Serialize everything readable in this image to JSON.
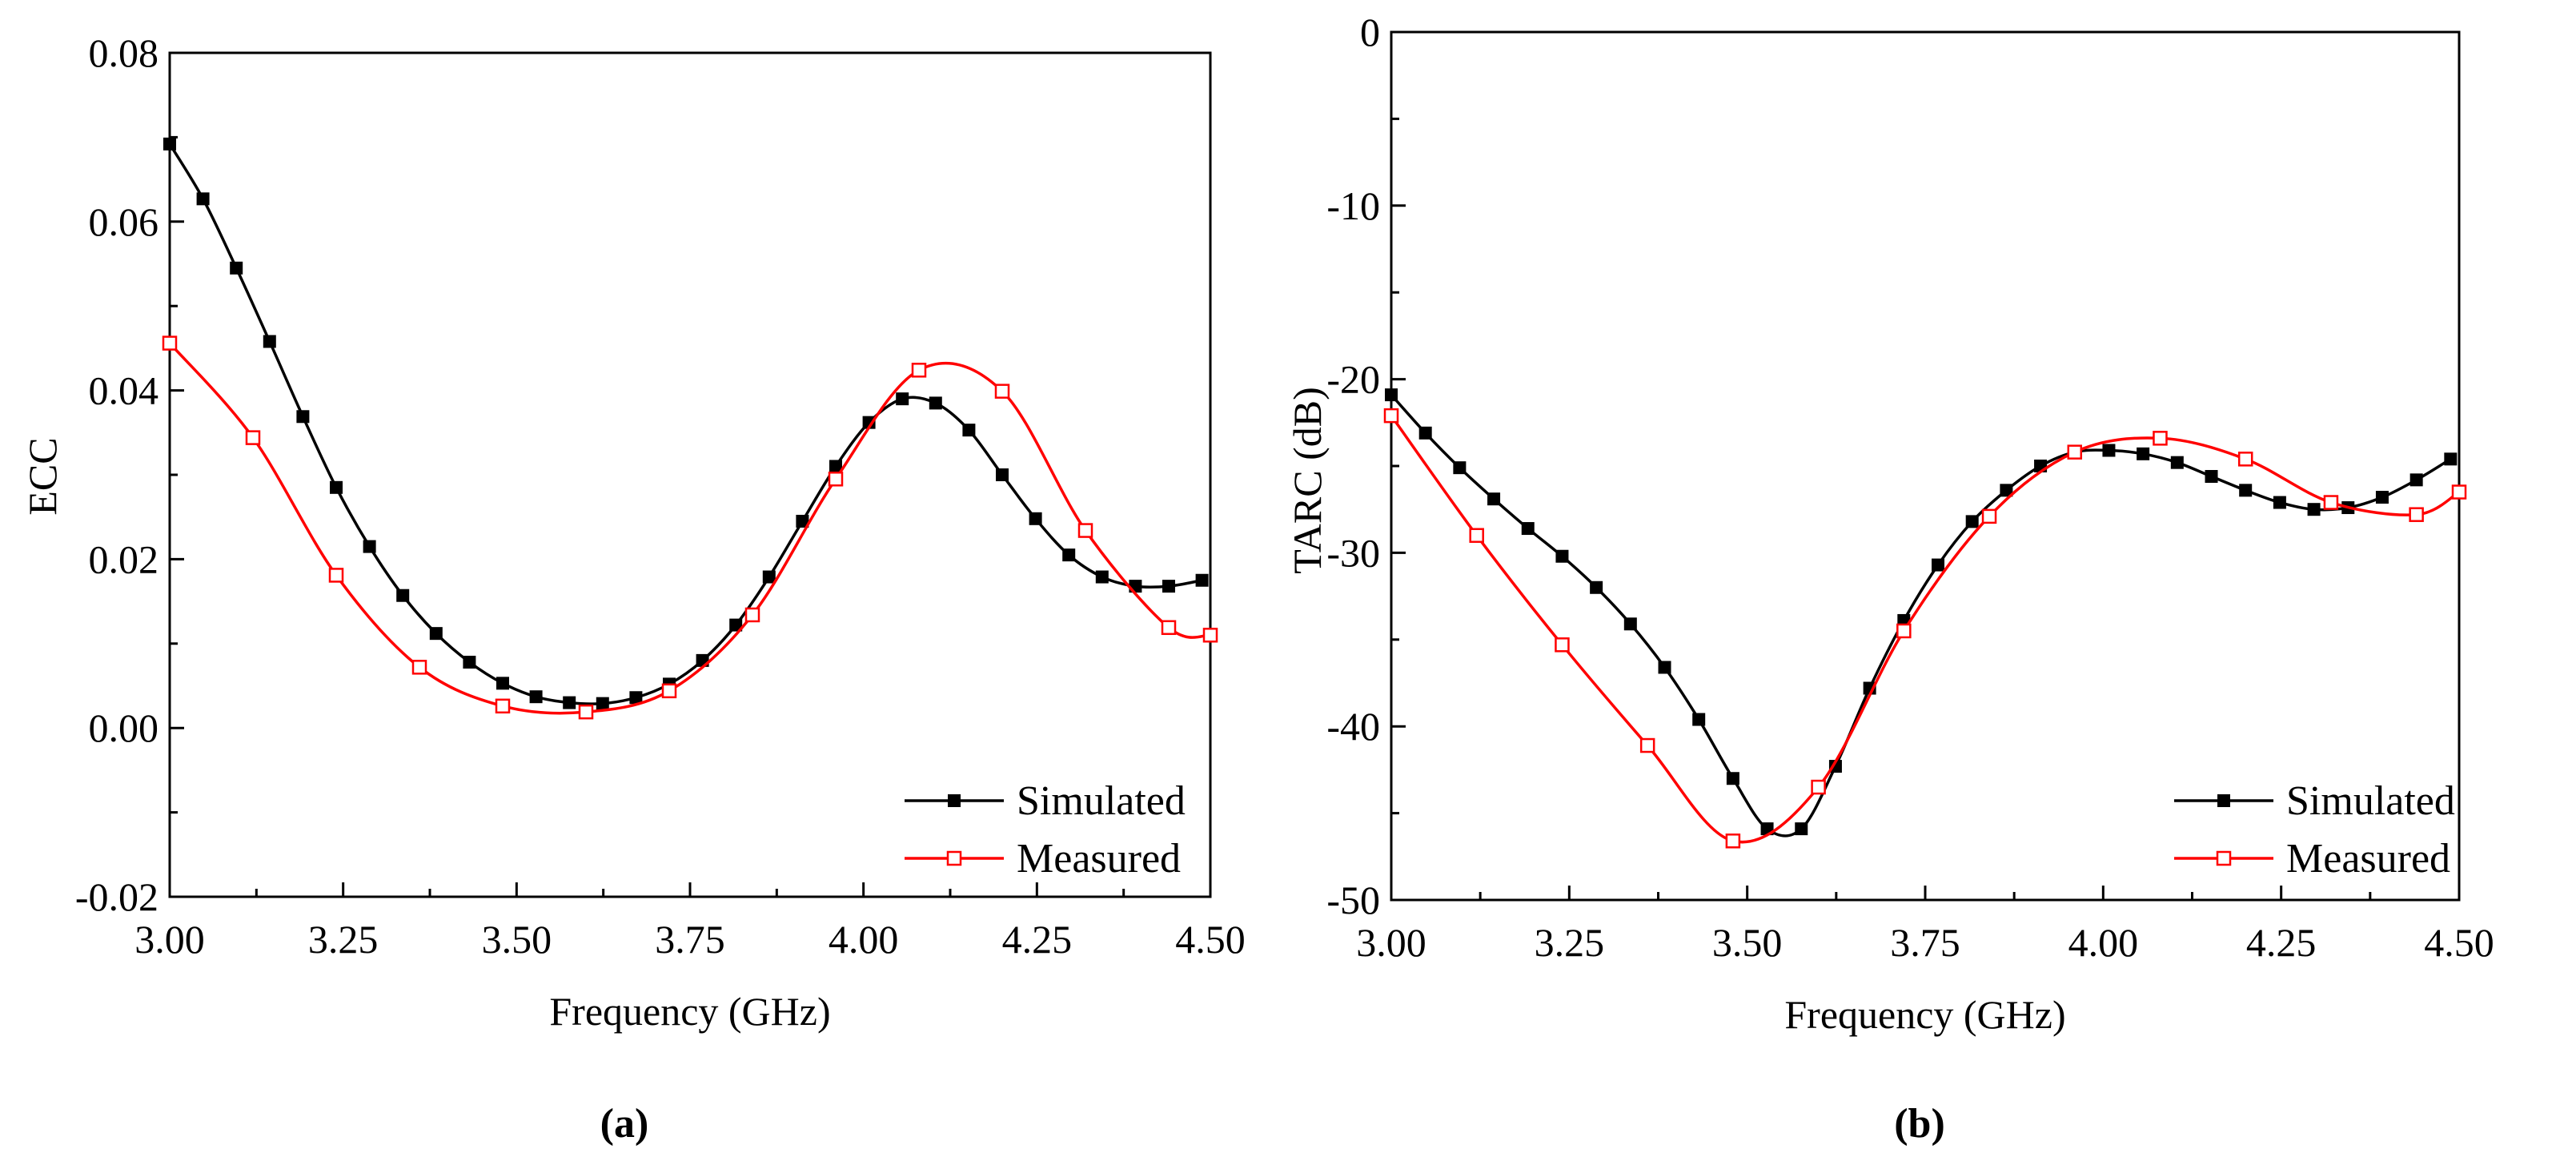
{
  "chart_data": [
    {
      "type": "line",
      "panel_label": "a",
      "xlabel": "Frequency (GHz)",
      "ylabel": "ECC",
      "xlim": [
        3.0,
        4.5
      ],
      "ylim": [
        -0.02,
        0.08
      ],
      "xticks": [
        "3.00",
        "3.25",
        "3.50",
        "3.75",
        "4.00",
        "4.25",
        "4.50"
      ],
      "yticks": [
        "-0.02",
        "0.00",
        "0.02",
        "0.04",
        "0.06",
        "0.08"
      ],
      "xtick_values": [
        3.0,
        3.25,
        3.5,
        3.75,
        4.0,
        4.25,
        4.5
      ],
      "ytick_values": [
        -0.02,
        0.0,
        0.02,
        0.04,
        0.06,
        0.08
      ],
      "legend_position": "bottom-right",
      "series": [
        {
          "name": "Simulated",
          "color": "#000000",
          "marker": "filled-square",
          "x": [
            3.0,
            3.048,
            3.096,
            3.144,
            3.192,
            3.24,
            3.288,
            3.336,
            3.384,
            3.432,
            3.48,
            3.528,
            3.576,
            3.624,
            3.672,
            3.72,
            3.768,
            3.816,
            3.864,
            3.912,
            3.96,
            4.008,
            4.056,
            4.104,
            4.152,
            4.2,
            4.248,
            4.296,
            4.344,
            4.392,
            4.44,
            4.488
          ],
          "y": [
            0.0692,
            0.0627,
            0.0545,
            0.0458,
            0.0369,
            0.0285,
            0.0215,
            0.0157,
            0.0112,
            0.0078,
            0.0053,
            0.0037,
            0.003,
            0.0029,
            0.0036,
            0.0052,
            0.008,
            0.0122,
            0.0179,
            0.0245,
            0.031,
            0.0362,
            0.039,
            0.0385,
            0.0353,
            0.03,
            0.0248,
            0.0205,
            0.0179,
            0.0168,
            0.0168,
            0.0175
          ]
        },
        {
          "name": "Measured",
          "color": "#ff0000",
          "marker": "open-square",
          "x": [
            3.0,
            3.12,
            3.24,
            3.36,
            3.48,
            3.6,
            3.72,
            3.84,
            3.96,
            4.08,
            4.2,
            4.32,
            4.44,
            4.5
          ],
          "y": [
            0.0456,
            0.0344,
            0.0181,
            0.0072,
            0.0026,
            0.0019,
            0.0044,
            0.0134,
            0.0295,
            0.0424,
            0.0399,
            0.0234,
            0.0119,
            0.011
          ]
        }
      ]
    },
    {
      "type": "line",
      "panel_label": "b",
      "xlabel": "Frequency (GHz)",
      "ylabel": "TARC (dB)",
      "xlim": [
        3.0,
        4.5
      ],
      "ylim": [
        -50,
        0
      ],
      "xticks": [
        "3.00",
        "3.25",
        "3.50",
        "3.75",
        "4.00",
        "4.25",
        "4.50"
      ],
      "yticks": [
        "-50",
        "-40",
        "-30",
        "-20",
        "-10",
        "0"
      ],
      "xtick_values": [
        3.0,
        3.25,
        3.5,
        3.75,
        4.0,
        4.25,
        4.5
      ],
      "ytick_values": [
        -50,
        -40,
        -30,
        -20,
        -10,
        0
      ],
      "legend_position": "bottom-right",
      "series": [
        {
          "name": "Simulated",
          "color": "#000000",
          "marker": "filled-square",
          "x": [
            3.0,
            3.048,
            3.096,
            3.144,
            3.192,
            3.24,
            3.288,
            3.336,
            3.384,
            3.432,
            3.48,
            3.528,
            3.576,
            3.624,
            3.672,
            3.72,
            3.768,
            3.816,
            3.864,
            3.912,
            3.96,
            4.008,
            4.056,
            4.104,
            4.152,
            4.2,
            4.248,
            4.296,
            4.344,
            4.392,
            4.44,
            4.488
          ],
          "y": [
            -20.9,
            -23.1,
            -25.1,
            -26.9,
            -28.6,
            -30.2,
            -32.0,
            -34.1,
            -36.6,
            -39.6,
            -43.0,
            -45.9,
            -45.9,
            -42.3,
            -37.8,
            -33.9,
            -30.7,
            -28.2,
            -26.4,
            -25.0,
            -24.2,
            -24.1,
            -24.3,
            -24.8,
            -25.6,
            -26.4,
            -27.1,
            -27.5,
            -27.4,
            -26.8,
            -25.8,
            -24.6
          ]
        },
        {
          "name": "Measured",
          "color": "#ff0000",
          "marker": "open-square",
          "x": [
            3.0,
            3.12,
            3.24,
            3.36,
            3.48,
            3.6,
            3.72,
            3.84,
            3.96,
            4.08,
            4.2,
            4.32,
            4.44,
            4.5
          ],
          "y": [
            -22.1,
            -29.0,
            -35.3,
            -41.1,
            -46.6,
            -43.5,
            -34.5,
            -27.9,
            -24.2,
            -23.4,
            -24.6,
            -27.1,
            -27.8,
            -26.5
          ]
        }
      ]
    }
  ],
  "captions": [
    "(a)",
    "(b)"
  ]
}
